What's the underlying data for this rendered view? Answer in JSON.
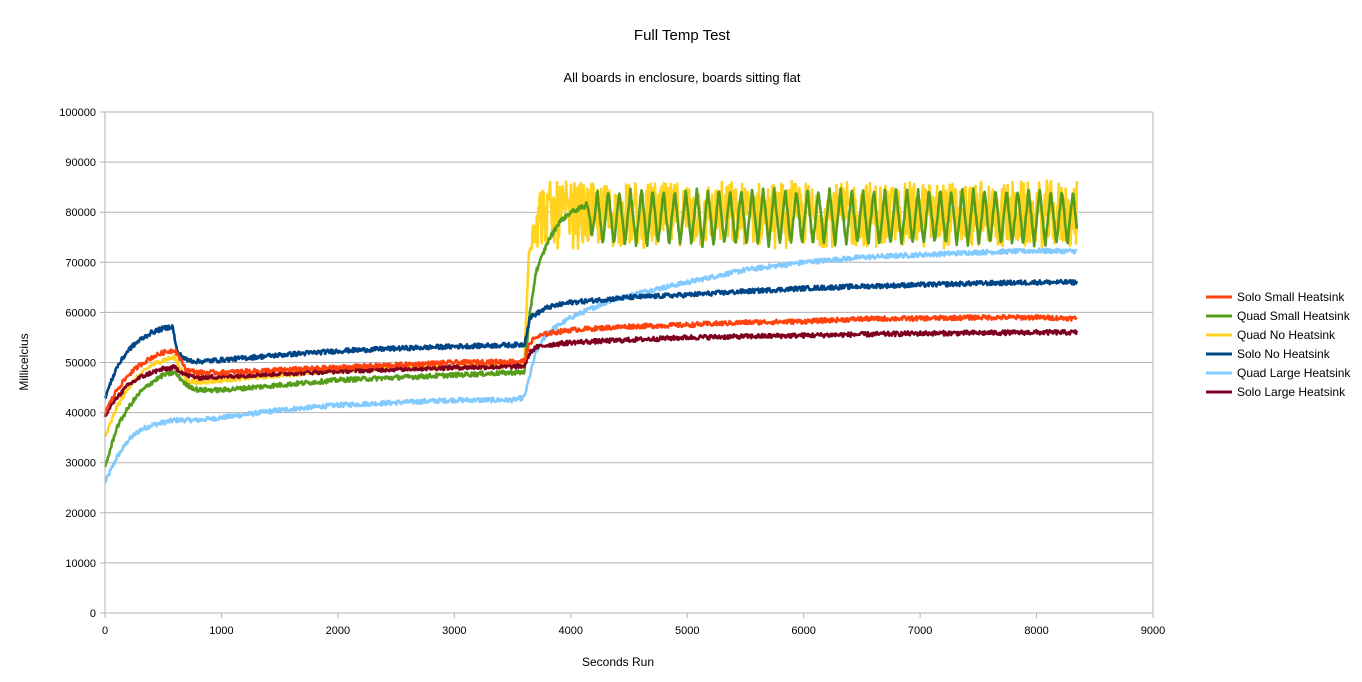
{
  "chart_data": {
    "type": "line",
    "title": "Full Temp Test",
    "subtitle": "All boards in enclosure, boards sitting flat",
    "xlabel": "Seconds Run",
    "ylabel": "Millicelcius",
    "xlim": [
      0,
      9000
    ],
    "ylim": [
      0,
      100000
    ],
    "x_ticks": [
      0,
      1000,
      2000,
      3000,
      4000,
      5000,
      6000,
      7000,
      8000,
      9000
    ],
    "x_tick_labels": [
      "0",
      "1000",
      "2000",
      "3000",
      "4000",
      "5000",
      "6000",
      "7000",
      "8000",
      "9000"
    ],
    "y_ticks": [
      0,
      10000,
      20000,
      30000,
      40000,
      50000,
      60000,
      70000,
      80000,
      90000,
      100000
    ],
    "y_tick_labels": [
      "0",
      "10000",
      "20000",
      "30000",
      "40000",
      "50000",
      "60000",
      "70000",
      "80000",
      "90000",
      "100000"
    ],
    "grid": "horizontal",
    "legend_position": "right",
    "series": [
      {
        "name": "Solo Small Heatsink",
        "color": "#ff420e",
        "x": [
          0,
          100,
          200,
          300,
          400,
          500,
          600,
          700,
          800,
          1000,
          1500,
          2000,
          2500,
          3000,
          3500,
          3600,
          3650,
          3700,
          3800,
          4000,
          4500,
          5000,
          5500,
          6000,
          6500,
          7000,
          7500,
          8000,
          8350
        ],
        "y": [
          40000,
          44500,
          47500,
          49500,
          51000,
          52000,
          52500,
          48500,
          48000,
          48000,
          48500,
          49000,
          49500,
          50000,
          50200,
          50300,
          54000,
          55000,
          55800,
          56500,
          57200,
          57500,
          58000,
          58200,
          58700,
          58800,
          59000,
          59000,
          58800
        ]
      },
      {
        "name": "Quad Small Heatsink",
        "color": "#579d1c",
        "x": [
          0,
          100,
          200,
          300,
          400,
          500,
          600,
          700,
          800,
          1000,
          1500,
          2000,
          2500,
          3000,
          3500,
          3600,
          3650,
          3700,
          3800,
          3900,
          4000,
          4100,
          4200,
          4500,
          5000,
          5500,
          6000,
          6500,
          7000,
          7500,
          8000,
          8350
        ],
        "y": [
          29000,
          37000,
          41000,
          44000,
          46000,
          47500,
          48000,
          45500,
          44500,
          44500,
          45500,
          46500,
          47000,
          47500,
          48000,
          48000,
          60000,
          68000,
          74000,
          78000,
          80000,
          81000,
          79000,
          79000,
          79000,
          79000,
          79000,
          79000,
          79000,
          79000,
          79000,
          79000
        ],
        "osc_amp": [
          0,
          0,
          0,
          0,
          0,
          0,
          0,
          0,
          0,
          0,
          0,
          0,
          0,
          0,
          0,
          0,
          0,
          0,
          0,
          0,
          0,
          0,
          5500,
          5500,
          5500,
          5500,
          5500,
          5500,
          5500,
          5500,
          5500,
          5500
        ]
      },
      {
        "name": "Quad No Heatsink",
        "color": "#ffd320",
        "x": [
          0,
          100,
          200,
          300,
          400,
          500,
          600,
          700,
          800,
          1000,
          1500,
          2000,
          2500,
          3000,
          3500,
          3600,
          3640,
          3700,
          4000,
          4500,
          5000,
          5500,
          6000,
          6500,
          7000,
          7500,
          8000,
          8350
        ],
        "y": [
          35000,
          41000,
          45000,
          47500,
          49500,
          50500,
          51000,
          46500,
          46000,
          46500,
          47500,
          48500,
          49000,
          49000,
          49500,
          49500,
          72000,
          79500,
          79500,
          79500,
          79500,
          79500,
          79500,
          79500,
          79500,
          79500,
          79500,
          79500
        ],
        "osc_amp": [
          0,
          0,
          0,
          0,
          0,
          0,
          0,
          0,
          0,
          0,
          0,
          0,
          0,
          0,
          0,
          0,
          0,
          6500,
          6500,
          6500,
          6500,
          6500,
          6500,
          6500,
          6500,
          6500,
          6500,
          6500
        ]
      },
      {
        "name": "Solo No Heatsink",
        "color": "#004586",
        "x": [
          0,
          100,
          200,
          300,
          400,
          500,
          580,
          620,
          700,
          800,
          1000,
          1500,
          2000,
          2500,
          3000,
          3500,
          3600,
          3650,
          3800,
          4000,
          4500,
          5000,
          5500,
          6000,
          6500,
          7000,
          7500,
          8000,
          8350
        ],
        "y": [
          43000,
          49000,
          52500,
          54500,
          56000,
          56800,
          57200,
          52000,
          50500,
          50200,
          50500,
          51500,
          52300,
          52800,
          53200,
          53500,
          53600,
          59000,
          61000,
          62000,
          63000,
          63500,
          64200,
          64800,
          65200,
          65500,
          65800,
          66000,
          66000
        ]
      },
      {
        "name": "Quad Large Heatsink",
        "color": "#83caff",
        "x": [
          0,
          100,
          200,
          300,
          400,
          500,
          600,
          700,
          800,
          1000,
          1500,
          2000,
          2500,
          3000,
          3500,
          3600,
          3700,
          3800,
          4000,
          4300,
          4600,
          5000,
          5500,
          6000,
          6500,
          7000,
          7500,
          8000,
          8350
        ],
        "y": [
          26000,
          31000,
          34500,
          36500,
          37500,
          38000,
          38500,
          38500,
          38500,
          39000,
          40500,
          41500,
          42000,
          42500,
          42500,
          43000,
          52000,
          56000,
          59000,
          62000,
          64000,
          66000,
          68500,
          70000,
          71000,
          71500,
          72000,
          72300,
          72200
        ]
      },
      {
        "name": "Solo Large Heatsink",
        "color": "#7e0021",
        "x": [
          0,
          100,
          200,
          300,
          400,
          500,
          600,
          700,
          800,
          1000,
          1500,
          2000,
          2500,
          3000,
          3500,
          3600,
          3650,
          3700,
          3800,
          4000,
          4500,
          5000,
          5500,
          6000,
          6500,
          7000,
          7500,
          8000,
          8350
        ],
        "y": [
          39500,
          43000,
          45500,
          47000,
          48000,
          48700,
          49000,
          47500,
          47000,
          47200,
          47800,
          48300,
          48700,
          49000,
          49200,
          49300,
          52000,
          53000,
          53500,
          54000,
          54500,
          55000,
          55200,
          55400,
          55600,
          55800,
          55900,
          56000,
          56000
        ]
      }
    ]
  }
}
